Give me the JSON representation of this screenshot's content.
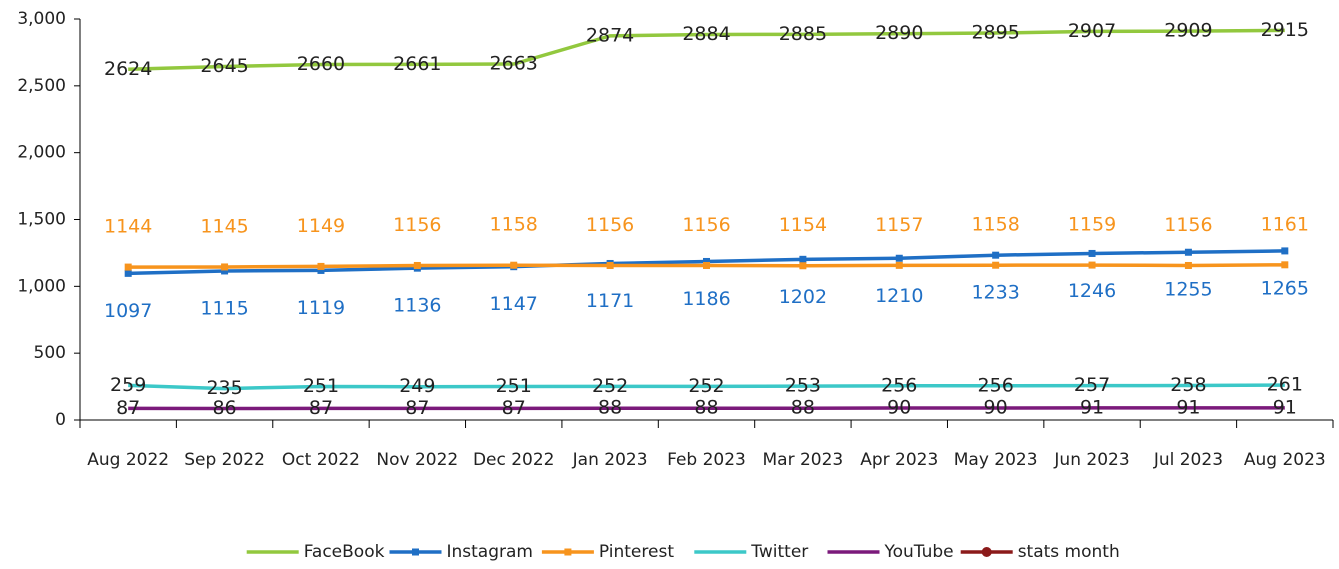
{
  "chart_data": {
    "type": "line",
    "categories": [
      "Aug 2022",
      "Sep 2022",
      "Oct 2022",
      "Nov 2022",
      "Dec 2022",
      "Jan 2023",
      "Feb 2023",
      "Mar 2023",
      "Apr 2023",
      "May 2023",
      "Jun 2023",
      "Jul 2023",
      "Aug 2023"
    ],
    "series": [
      {
        "name": "FaceBook",
        "color": "#92c83e",
        "values": [
          2624,
          2645,
          2660,
          2661,
          2663,
          2874,
          2884,
          2885,
          2890,
          2895,
          2907,
          2909,
          2915
        ]
      },
      {
        "name": "Instagram",
        "color": "#1f6fc5",
        "marker": "square",
        "values": [
          1097,
          1115,
          1119,
          1136,
          1147,
          1171,
          1186,
          1202,
          1210,
          1233,
          1246,
          1255,
          1265
        ]
      },
      {
        "name": "Pinterest",
        "color": "#f7941d",
        "marker": "square",
        "values": [
          1144,
          1145,
          1149,
          1156,
          1158,
          1156,
          1156,
          1154,
          1157,
          1158,
          1159,
          1156,
          1161
        ]
      },
      {
        "name": "Twitter",
        "color": "#3cc8c8",
        "values": [
          259,
          235,
          251,
          249,
          251,
          252,
          252,
          253,
          256,
          256,
          257,
          258,
          261
        ]
      },
      {
        "name": "YouTube",
        "color": "#7b1a7b",
        "values": [
          87,
          86,
          87,
          87,
          87,
          88,
          88,
          88,
          90,
          90,
          91,
          91,
          91
        ]
      },
      {
        "name": "stats month",
        "color": "#8b1a1a",
        "marker": "circle",
        "values": [
          null,
          null,
          null,
          null,
          null,
          null,
          null,
          null,
          null,
          null,
          null,
          null,
          null
        ]
      }
    ],
    "ylim": [
      0,
      3000
    ],
    "yticks": [
      0,
      500,
      {
        "value": 1000,
        "label": "1,000"
      },
      {
        "value": 1500,
        "label": "1,500"
      },
      {
        "value": 2000,
        "label": "2,000"
      },
      {
        "value": 2500,
        "label": "2,500"
      },
      {
        "value": 3000,
        "label": "3,000"
      }
    ],
    "grid": false,
    "legend": "bottom"
  }
}
